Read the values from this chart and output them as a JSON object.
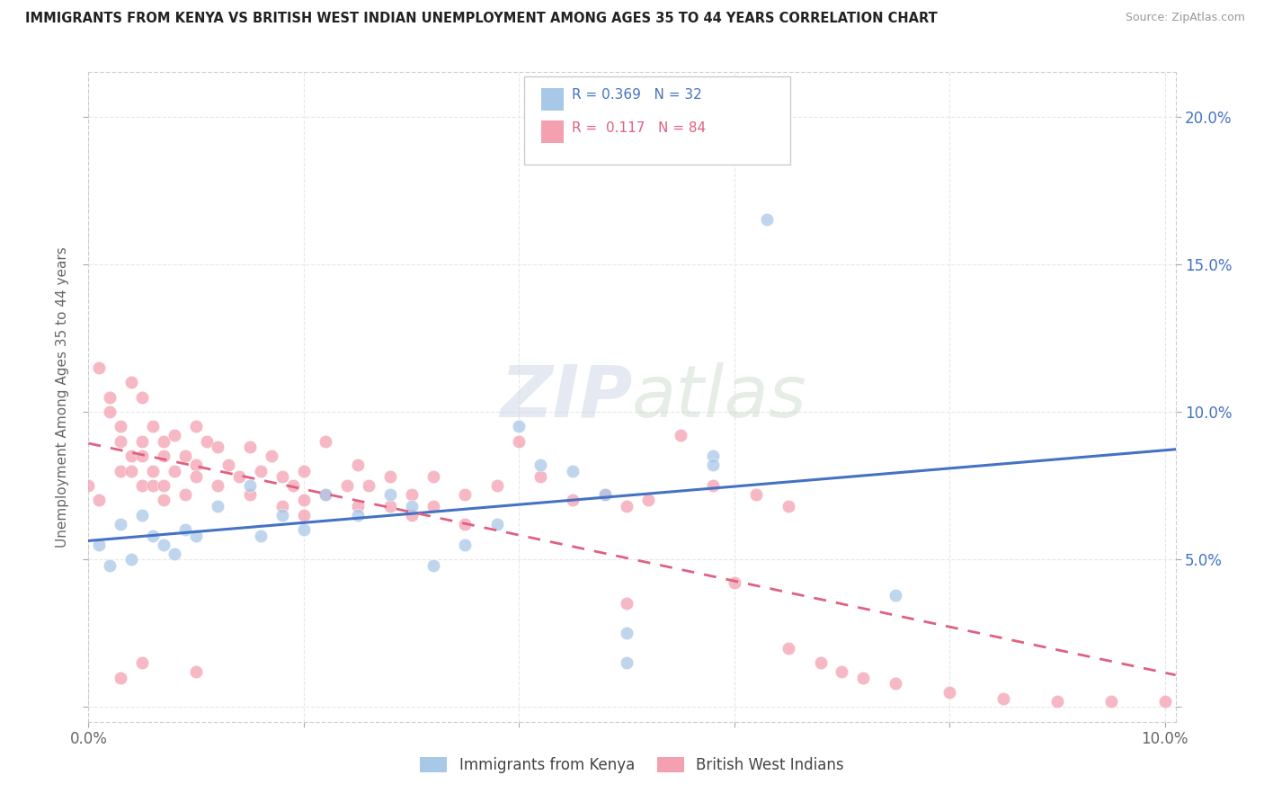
{
  "title": "IMMIGRANTS FROM KENYA VS BRITISH WEST INDIAN UNEMPLOYMENT AMONG AGES 35 TO 44 YEARS CORRELATION CHART",
  "source": "Source: ZipAtlas.com",
  "ylabel": "Unemployment Among Ages 35 to 44 years",
  "xlim": [
    0.0,
    0.101
  ],
  "ylim": [
    -0.005,
    0.215
  ],
  "xticks": [
    0.0,
    0.02,
    0.04,
    0.06,
    0.08,
    0.1
  ],
  "xtick_labels": [
    "0.0%",
    "",
    "",
    "",
    "",
    "10.0%"
  ],
  "yticks": [
    0.0,
    0.05,
    0.1,
    0.15,
    0.2
  ],
  "ytick_labels_right": [
    "",
    "5.0%",
    "10.0%",
    "15.0%",
    "20.0%"
  ],
  "kenya_color": "#a8c8e8",
  "bwi_color": "#f4a0b0",
  "kenya_line_color": "#4472c4",
  "bwi_line_color": "#e06080",
  "kenya_R": 0.369,
  "kenya_N": 32,
  "bwi_R": 0.117,
  "bwi_N": 84,
  "watermark": "ZIPatlas",
  "background_color": "#ffffff",
  "grid_color": "#e8e8e8",
  "legend_kenya_color": "#6baed6",
  "legend_bwi_color": "#f4a0b0"
}
